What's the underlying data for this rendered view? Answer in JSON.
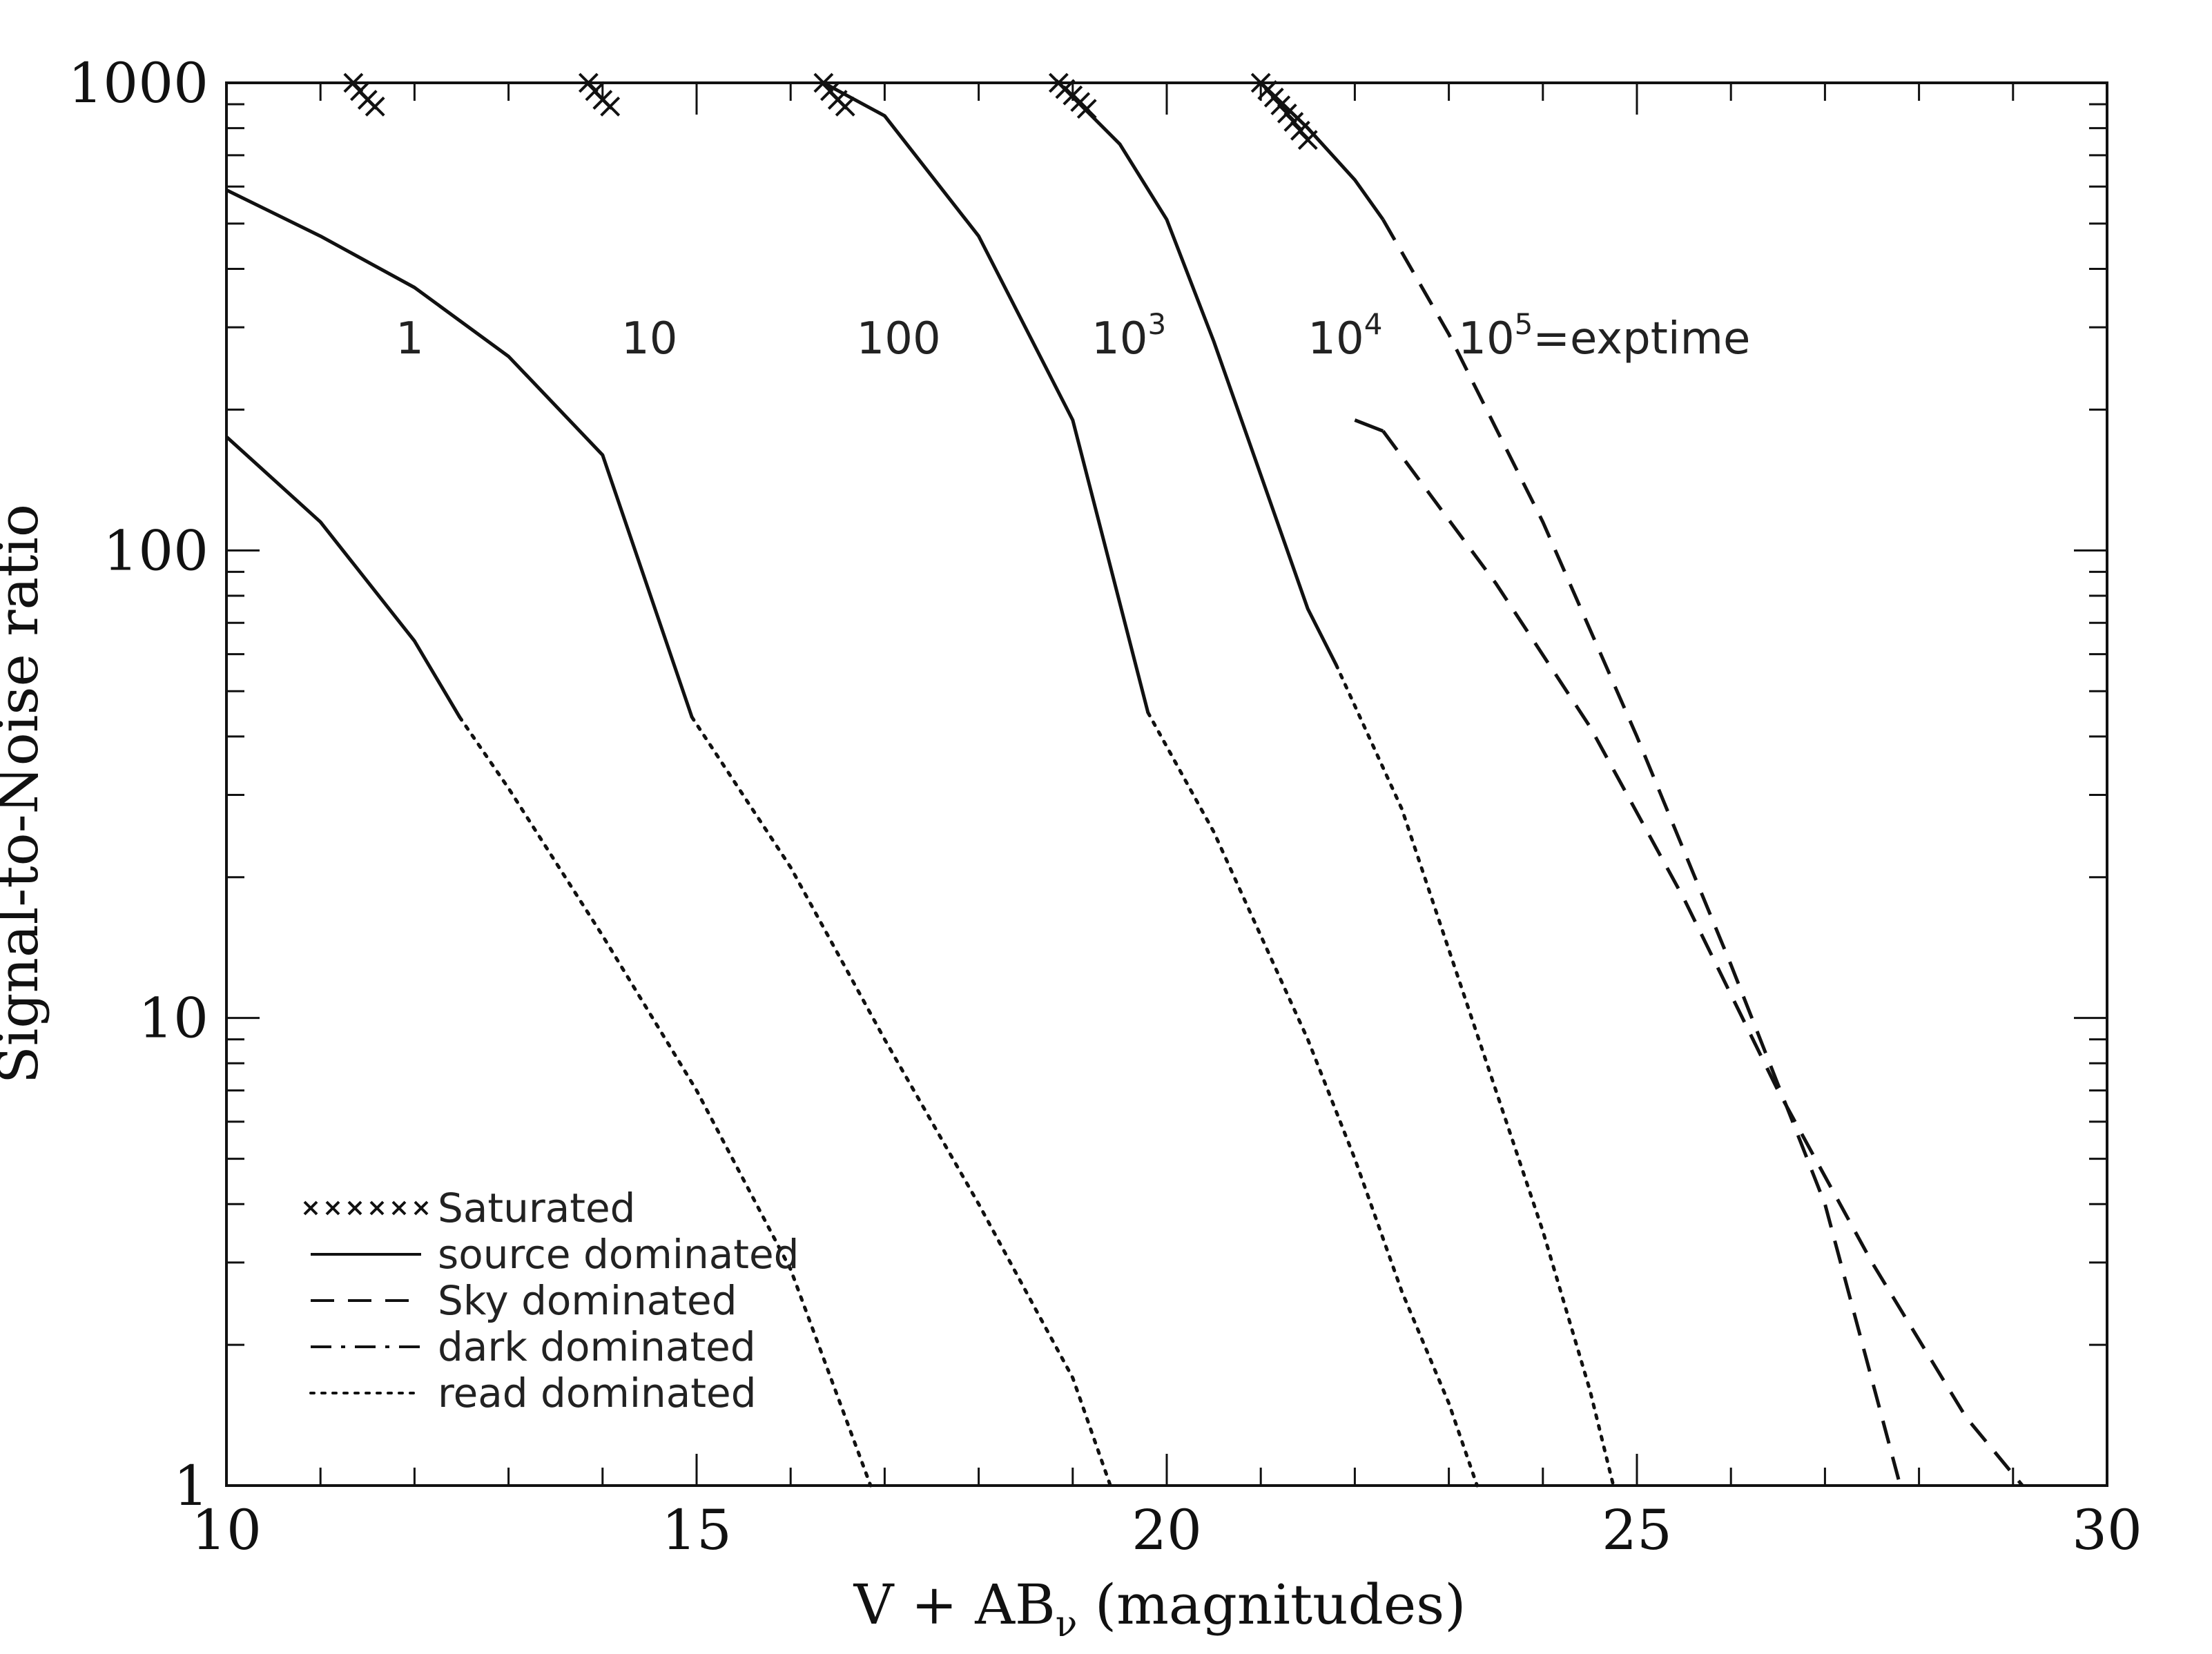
{
  "chart_data": {
    "type": "line",
    "xlabel": "V + AB",
    "xlabel_sub": "ν",
    "xlabel_suffix": " (magnitudes)",
    "ylabel": "Signal-to-Noise ratio",
    "xlim": [
      10,
      30
    ],
    "ylim": [
      1,
      1000
    ],
    "y_scale": "log",
    "grid": false,
    "x_ticks": [
      10,
      15,
      20,
      25,
      30
    ],
    "x_tick_labels": [
      "10",
      "15",
      "20",
      "25",
      "30"
    ],
    "y_ticks": [
      1,
      10,
      100,
      1000
    ],
    "y_tick_labels": [
      "1",
      "10",
      "100",
      "1000"
    ],
    "legend_position": "bottom-left",
    "legend": [
      {
        "style": "saturated",
        "label": "Saturated"
      },
      {
        "style": "solid",
        "label": "source dominated"
      },
      {
        "style": "dashed",
        "label": "Sky dominated"
      },
      {
        "style": "dashdot",
        "label": "dark dominated"
      },
      {
        "style": "dotted",
        "label": "read dominated"
      }
    ],
    "exptime_labels": [
      {
        "base": "1",
        "sup": "",
        "suffix": "",
        "x": 11.8,
        "y": 290
      },
      {
        "base": "10",
        "sup": "",
        "suffix": "",
        "x": 14.2,
        "y": 290
      },
      {
        "base": "100",
        "sup": "",
        "suffix": "",
        "x": 16.7,
        "y": 290
      },
      {
        "base": "10",
        "sup": "3",
        "suffix": "",
        "x": 19.2,
        "y": 290
      },
      {
        "base": "10",
        "sup": "4",
        "suffix": "",
        "x": 21.5,
        "y": 290
      },
      {
        "base": "10",
        "sup": "5",
        "suffix": "=exptime",
        "x": 23.1,
        "y": 290
      }
    ],
    "series": [
      {
        "exptime": 1,
        "saturated": [
          [
            11.35,
            1000
          ],
          [
            11.42,
            960
          ],
          [
            11.5,
            920
          ],
          [
            11.58,
            890
          ]
        ],
        "segments": [
          {
            "style": "solid",
            "points": [
              [
                10.0,
                175
              ],
              [
                11.0,
                115
              ],
              [
                12.0,
                64
              ],
              [
                12.48,
                44
              ]
            ]
          },
          {
            "style": "dotted",
            "points": [
              [
                12.48,
                44
              ],
              [
                13.0,
                31
              ],
              [
                14.0,
                15
              ],
              [
                15.0,
                7
              ],
              [
                16.0,
                2.9
              ],
              [
                16.85,
                1
              ]
            ]
          }
        ]
      },
      {
        "exptime": 10,
        "saturated": [
          [
            13.85,
            1000
          ],
          [
            13.92,
            960
          ],
          [
            14.0,
            920
          ],
          [
            14.08,
            890
          ]
        ],
        "segments": [
          {
            "style": "solid",
            "points": [
              [
                10.0,
                590
              ],
              [
                11.0,
                470
              ],
              [
                12.0,
                365
              ],
              [
                13.0,
                260
              ],
              [
                14.0,
                160
              ],
              [
                14.95,
                44
              ]
            ]
          },
          {
            "style": "dotted",
            "points": [
              [
                14.95,
                44
              ],
              [
                16.0,
                21
              ],
              [
                17.0,
                9
              ],
              [
                18.0,
                4
              ],
              [
                19.0,
                1.7
              ],
              [
                19.4,
                1
              ]
            ]
          }
        ]
      },
      {
        "exptime": 100,
        "saturated": [
          [
            16.35,
            1000
          ],
          [
            16.42,
            960
          ],
          [
            16.5,
            920
          ],
          [
            16.58,
            890
          ]
        ],
        "segments": [
          {
            "style": "solid",
            "points": [
              [
                16.35,
                1000
              ],
              [
                17.0,
                850
              ],
              [
                18.0,
                470
              ],
              [
                19.0,
                190
              ],
              [
                19.8,
                45
              ]
            ]
          },
          {
            "style": "dotted",
            "points": [
              [
                19.8,
                45
              ],
              [
                20.5,
                25
              ],
              [
                21.0,
                15
              ],
              [
                21.5,
                9
              ],
              [
                22.0,
                5
              ],
              [
                22.5,
                2.6
              ],
              [
                23.0,
                1.5
              ],
              [
                23.3,
                1
              ]
            ]
          }
        ]
      },
      {
        "exptime": 1000,
        "saturated": [
          [
            18.85,
            1000
          ],
          [
            18.92,
            970
          ],
          [
            19.0,
            940
          ],
          [
            19.08,
            910
          ],
          [
            19.15,
            880
          ]
        ],
        "segments": [
          {
            "style": "solid",
            "points": [
              [
                18.85,
                1000
              ],
              [
                19.5,
                740
              ],
              [
                20.0,
                510
              ],
              [
                20.5,
                280
              ],
              [
                21.0,
                145
              ],
              [
                21.5,
                75
              ],
              [
                21.8,
                57
              ]
            ]
          },
          {
            "style": "dotted",
            "points": [
              [
                21.8,
                57
              ],
              [
                22.5,
                28
              ],
              [
                23.0,
                14
              ],
              [
                23.5,
                7
              ],
              [
                24.0,
                3.5
              ],
              [
                24.5,
                1.6
              ],
              [
                24.75,
                1
              ]
            ]
          }
        ]
      },
      {
        "exptime": 10000,
        "saturated": [
          [
            21.0,
            1000
          ],
          [
            21.07,
            965
          ],
          [
            21.14,
            930
          ],
          [
            21.21,
            895
          ],
          [
            21.28,
            860
          ],
          [
            21.35,
            825
          ],
          [
            21.42,
            790
          ],
          [
            21.5,
            755
          ]
        ],
        "segments": [
          {
            "style": "solid",
            "points": [
              [
                21.0,
                1000
              ],
              [
                21.5,
                800
              ],
              [
                22.0,
                620
              ],
              [
                22.3,
                510
              ]
            ]
          },
          {
            "style": "dashed",
            "points": [
              [
                22.3,
                510
              ],
              [
                23.0,
                290
              ],
              [
                24.0,
                115
              ],
              [
                25.0,
                40
              ],
              [
                26.0,
                13
              ],
              [
                27.0,
                4
              ],
              [
                27.8,
                1
              ]
            ]
          }
        ]
      },
      {
        "exptime": 100000,
        "saturated": [],
        "segments": [
          {
            "style": "solid",
            "points": [
              [
                22.3,
                180
              ],
              [
                22.0,
                190
              ]
            ]
          },
          {
            "style": "dashed",
            "points": [
              [
                22.3,
                180
              ],
              [
                23.5,
                85
              ],
              [
                24.5,
                42
              ],
              [
                25.5,
                18
              ],
              [
                26.5,
                7
              ],
              [
                27.5,
                3
              ],
              [
                28.5,
                1.4
              ],
              [
                29.1,
                1
              ]
            ]
          }
        ]
      }
    ]
  }
}
